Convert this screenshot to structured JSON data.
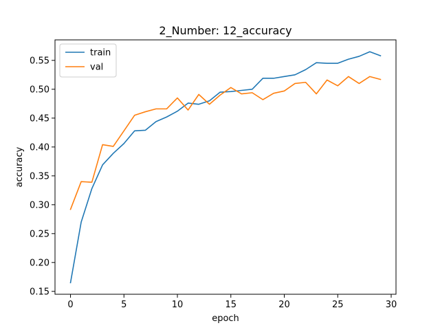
{
  "chart_data": {
    "type": "line",
    "title": "2_Number: 12_accuracy",
    "xlabel": "epoch",
    "ylabel": "accuracy",
    "xlim": [
      -1.45,
      30.45
    ],
    "ylim": [
      0.145,
      0.5855
    ],
    "xticks": [
      0,
      5,
      10,
      15,
      20,
      25,
      30
    ],
    "xtick_labels": [
      "0",
      "5",
      "10",
      "15",
      "20",
      "25",
      "30"
    ],
    "yticks": [
      0.15,
      0.2,
      0.25,
      0.3,
      0.35,
      0.4,
      0.45,
      0.5,
      0.55
    ],
    "ytick_labels": [
      "0.15",
      "0.20",
      "0.25",
      "0.30",
      "0.35",
      "0.40",
      "0.45",
      "0.50",
      "0.55"
    ],
    "grid": false,
    "legend_position": "top-left",
    "x": [
      0,
      1,
      2,
      3,
      4,
      5,
      6,
      7,
      8,
      9,
      10,
      11,
      12,
      13,
      14,
      15,
      16,
      17,
      18,
      19,
      20,
      21,
      22,
      23,
      24,
      25,
      26,
      27,
      28,
      29
    ],
    "series": [
      {
        "name": "train",
        "color": "#1f77b4",
        "values": [
          0.165,
          0.27,
          0.328,
          0.369,
          0.389,
          0.406,
          0.428,
          0.429,
          0.444,
          0.452,
          0.462,
          0.476,
          0.474,
          0.48,
          0.495,
          0.496,
          0.498,
          0.5,
          0.519,
          0.519,
          0.522,
          0.525,
          0.534,
          0.546,
          0.545,
          0.545,
          0.552,
          0.557,
          0.565,
          0.558
        ]
      },
      {
        "name": "val",
        "color": "#ff7f0e",
        "values": [
          0.292,
          0.34,
          0.339,
          0.404,
          0.401,
          0.428,
          0.455,
          0.461,
          0.466,
          0.466,
          0.485,
          0.464,
          0.491,
          0.474,
          0.49,
          0.503,
          0.492,
          0.494,
          0.482,
          0.493,
          0.497,
          0.51,
          0.512,
          0.492,
          0.516,
          0.506,
          0.522,
          0.51,
          0.522,
          0.517
        ]
      }
    ]
  }
}
